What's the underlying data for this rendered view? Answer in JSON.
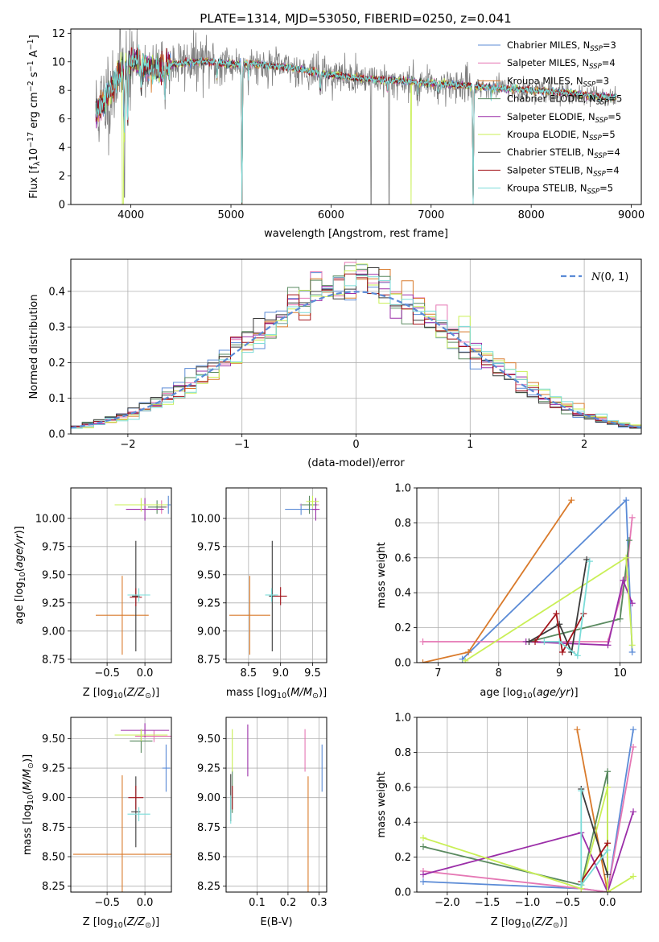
{
  "colors": [
    "#5b8bd6",
    "#e577b4",
    "#d97a2b",
    "#5a8a60",
    "#9b2ea8",
    "#c9ef56",
    "#3a3a3a",
    "#a3131a",
    "#7adcd8"
  ],
  "spectrum_color": "#808080",
  "chart_data": [
    {
      "id": "spectrum",
      "type": "line",
      "title": "PLATE=1314, MJD=53050, FIBERID=0250, z=0.041",
      "xlabel": "wavelength [Angstrom, rest frame]",
      "ylabel": "Flux [f_λ 10^-17 erg cm^-2 s^-1 A^-1]",
      "xlim": [
        3400,
        9100
      ],
      "ylim": [
        0,
        12.3
      ],
      "xticks": [
        4000,
        5000,
        6000,
        7000,
        8000,
        9000
      ],
      "yticks": [
        0,
        2,
        4,
        6,
        8,
        10,
        12
      ],
      "grid": false,
      "legend_position": "top-right",
      "legend": [
        {
          "pre": "Chabrier MILES, N",
          "sub": "SSP",
          "post": "=3"
        },
        {
          "pre": "Salpeter MILES, N",
          "sub": "SSP",
          "post": "=4"
        },
        {
          "pre": "Kroupa MILES, N",
          "sub": "SSP",
          "post": "=3"
        },
        {
          "pre": "Chabrier ELODIE, N",
          "sub": "SSP",
          "post": "=5"
        },
        {
          "pre": "Salpeter ELODIE, N",
          "sub": "SSP",
          "post": "=5"
        },
        {
          "pre": "Kroupa ELODIE, N",
          "sub": "SSP",
          "post": "=5"
        },
        {
          "pre": "Chabrier STELIB, N",
          "sub": "SSP",
          "post": "=4"
        },
        {
          "pre": "Salpeter STELIB, N",
          "sub": "SSP",
          "post": "=4"
        },
        {
          "pre": "Kroupa STELIB, N",
          "sub": "SSP",
          "post": "=5"
        }
      ],
      "continuum": [
        [
          3650,
          6.5
        ],
        [
          3700,
          6.8
        ],
        [
          3800,
          8.0
        ],
        [
          3900,
          9.5
        ],
        [
          4000,
          10.0
        ],
        [
          4100,
          9.9
        ],
        [
          4200,
          9.5
        ],
        [
          4300,
          9.4
        ],
        [
          4400,
          9.8
        ],
        [
          4600,
          10.0
        ],
        [
          4800,
          10.0
        ],
        [
          5000,
          9.8
        ],
        [
          5200,
          9.9
        ],
        [
          5400,
          9.7
        ],
        [
          5600,
          9.6
        ],
        [
          5800,
          9.3
        ],
        [
          6000,
          9.1
        ],
        [
          6200,
          8.9
        ],
        [
          6400,
          8.8
        ],
        [
          6600,
          8.7
        ],
        [
          6800,
          8.6
        ],
        [
          7000,
          8.5
        ],
        [
          7200,
          8.4
        ],
        [
          7400,
          8.3
        ],
        [
          7600,
          8.2
        ],
        [
          7800,
          8.1
        ],
        [
          8000,
          8.0
        ],
        [
          8200,
          7.9
        ],
        [
          8400,
          7.8
        ],
        [
          8600,
          7.6
        ],
        [
          8800,
          7.5
        ]
      ],
      "absorption_lines": [
        [
          3934,
          5.0
        ],
        [
          3968,
          5.5
        ],
        [
          4102,
          8.2
        ],
        [
          4340,
          7.9
        ],
        [
          4861,
          8.8
        ],
        [
          5110,
          0.0
        ],
        [
          5175,
          8.9
        ],
        [
          5893,
          8.0
        ],
        [
          6563,
          7.9
        ],
        [
          6870,
          7.6
        ],
        [
          7070,
          7.9
        ],
        [
          7420,
          0.0
        ],
        [
          7600,
          7.5
        ]
      ]
    },
    {
      "id": "residuals",
      "type": "line",
      "xlabel": "(data-model)/error",
      "ylabel": "Normed distribution",
      "xlim": [
        -2.5,
        2.5
      ],
      "ylim": [
        0,
        0.49
      ],
      "xticks": [
        -2,
        -1,
        0,
        1,
        2
      ],
      "yticks": [
        0.0,
        0.1,
        0.2,
        0.3,
        0.4
      ],
      "grid": true,
      "legend_position": "top-right",
      "legend_label": "N(0,1)",
      "reference_color": "#5b8bd6",
      "bin_width": 0.1
    },
    {
      "id": "z-age",
      "type": "scatter",
      "xlabel": "Z [log10(Z/Z⊙)]",
      "ylabel": "age  [log10(age/yr)]",
      "xlim": [
        -0.98,
        0.35
      ],
      "ylim": [
        8.72,
        10.27
      ],
      "xticks": [
        -0.5,
        0.0
      ],
      "yticks": [
        8.75,
        9.0,
        9.25,
        9.5,
        9.75,
        10.0
      ],
      "grid": true,
      "points": [
        {
          "c": 0,
          "x": 0.31,
          "xe": 0.03,
          "y": 10.12,
          "ye": 0.08
        },
        {
          "c": 1,
          "x": 0.22,
          "xe": 0.08,
          "y": 10.1,
          "ye": 0.06
        },
        {
          "c": 2,
          "x": -0.3,
          "xe": 0.35,
          "y": 9.14,
          "ye": 0.35
        },
        {
          "c": 3,
          "x": 0.16,
          "xe": 0.12,
          "y": 10.1,
          "ye": 0.06
        },
        {
          "c": 4,
          "x": 0.0,
          "xe": 0.25,
          "y": 10.08,
          "ye": 0.1
        },
        {
          "c": 5,
          "x": -0.05,
          "xe": 0.35,
          "y": 10.12,
          "ye": 0.06
        },
        {
          "c": 6,
          "x": -0.12,
          "xe": 0.05,
          "y": 9.31,
          "ye": 0.49
        },
        {
          "c": 7,
          "x": -0.12,
          "xe": 0.08,
          "y": 9.3,
          "ye": 0.08
        },
        {
          "c": 8,
          "x": -0.08,
          "xe": 0.15,
          "y": 9.32,
          "ye": 0.06
        }
      ]
    },
    {
      "id": "mass-age",
      "type": "scatter",
      "xlabel": "mass [log10(M/M⊙)]",
      "ylabel": "",
      "xlim": [
        8.15,
        9.72
      ],
      "ylim": [
        8.72,
        10.27
      ],
      "xticks": [
        8.5,
        9.0,
        9.5
      ],
      "yticks": [
        8.75,
        9.0,
        9.25,
        9.5,
        9.75,
        10.0
      ],
      "grid": true,
      "points": [
        {
          "c": 0,
          "x": 9.32,
          "xe": 0.25,
          "y": 10.08,
          "ye": 0.05
        },
        {
          "c": 1,
          "x": 9.45,
          "xe": 0.15,
          "y": 10.12,
          "ye": 0.06
        },
        {
          "c": 2,
          "x": 8.52,
          "xe": 0.32,
          "y": 9.14,
          "ye": 0.35
        },
        {
          "c": 3,
          "x": 9.45,
          "xe": 0.12,
          "y": 10.12,
          "ye": 0.08
        },
        {
          "c": 4,
          "x": 9.55,
          "xe": 0.06,
          "y": 10.08,
          "ye": 0.1
        },
        {
          "c": 5,
          "x": 9.5,
          "xe": 0.1,
          "y": 10.15,
          "ye": 0.05
        },
        {
          "c": 6,
          "x": 8.87,
          "xe": 0.05,
          "y": 9.31,
          "ye": 0.49
        },
        {
          "c": 7,
          "x": 9.0,
          "xe": 0.1,
          "y": 9.31,
          "ye": 0.08
        },
        {
          "c": 8,
          "x": 8.86,
          "xe": 0.1,
          "y": 9.32,
          "ye": 0.06
        }
      ]
    },
    {
      "id": "age-weight",
      "type": "line",
      "xlabel": "age  [log10(age/yr)]",
      "ylabel": "mass weight",
      "xlim": [
        6.65,
        10.35
      ],
      "ylim": [
        0,
        1.0
      ],
      "xticks": [
        7,
        8,
        9,
        10
      ],
      "yticks": [
        0.0,
        0.2,
        0.4,
        0.6,
        0.8,
        1.0
      ],
      "grid": true,
      "series": [
        {
          "c": 0,
          "points": [
            [
              7.4,
              0.02
            ],
            [
              10.1,
              0.93
            ],
            [
              10.2,
              0.06
            ]
          ]
        },
        {
          "c": 1,
          "points": [
            [
              6.75,
              0.12
            ],
            [
              9.8,
              0.12
            ],
            [
              10.1,
              0.49
            ],
            [
              10.2,
              0.83
            ]
          ]
        },
        {
          "c": 2,
          "points": [
            [
              6.75,
              0.0
            ],
            [
              7.5,
              0.06
            ],
            [
              9.2,
              0.93
            ]
          ]
        },
        {
          "c": 3,
          "points": [
            [
              8.5,
              0.12
            ],
            [
              10.0,
              0.25
            ],
            [
              10.15,
              0.7
            ]
          ]
        },
        {
          "c": 4,
          "points": [
            [
              8.45,
              0.12
            ],
            [
              9.8,
              0.1
            ],
            [
              10.05,
              0.47
            ],
            [
              10.2,
              0.34
            ]
          ]
        },
        {
          "c": 5,
          "points": [
            [
              7.45,
              0.01
            ],
            [
              10.1,
              0.6
            ],
            [
              10.2,
              0.1
            ]
          ]
        },
        {
          "c": 6,
          "points": [
            [
              8.5,
              0.12
            ],
            [
              9.0,
              0.22
            ],
            [
              9.2,
              0.06
            ],
            [
              9.45,
              0.59
            ]
          ]
        },
        {
          "c": 7,
          "points": [
            [
              8.6,
              0.12
            ],
            [
              8.95,
              0.28
            ],
            [
              9.05,
              0.06
            ],
            [
              9.4,
              0.28
            ]
          ]
        },
        {
          "c": 8,
          "points": [
            [
              8.75,
              0.12
            ],
            [
              9.0,
              0.12
            ],
            [
              9.3,
              0.04
            ],
            [
              9.5,
              0.58
            ]
          ]
        }
      ]
    },
    {
      "id": "z-mass",
      "type": "scatter",
      "xlabel": "Z [log10(Z/Z⊙)]",
      "ylabel": "mass [log10(M/M⊙)]",
      "xlim": [
        -0.98,
        0.35
      ],
      "ylim": [
        8.2,
        9.68
      ],
      "xticks": [
        -0.5,
        0.0
      ],
      "yticks": [
        8.25,
        8.5,
        8.75,
        9.0,
        9.25,
        9.5
      ],
      "grid": true,
      "points": [
        {
          "c": 0,
          "x": 0.28,
          "xe": 0.05,
          "y": 9.25,
          "ye": 0.2
        },
        {
          "c": 1,
          "x": 0.12,
          "xe": 0.25,
          "y": 9.52,
          "ye": 0.05
        },
        {
          "c": 2,
          "x": -0.3,
          "xe": 0.65,
          "y": 8.52,
          "ye": 0.67
        },
        {
          "c": 3,
          "x": -0.05,
          "xe": 0.15,
          "y": 9.48,
          "ye": 0.1
        },
        {
          "c": 4,
          "x": 0.0,
          "xe": 0.32,
          "y": 9.57,
          "ye": 0.06
        },
        {
          "c": 5,
          "x": -0.05,
          "xe": 0.35,
          "y": 9.53,
          "ye": 0.05
        },
        {
          "c": 6,
          "x": -0.12,
          "xe": 0.06,
          "y": 8.88,
          "ye": 0.3
        },
        {
          "c": 7,
          "x": -0.12,
          "xe": 0.1,
          "y": 9.0,
          "ye": 0.1
        },
        {
          "c": 8,
          "x": -0.08,
          "xe": 0.15,
          "y": 8.86,
          "ye": 0.06
        }
      ]
    },
    {
      "id": "ebv-mass",
      "type": "scatter",
      "xlabel": "E(B-V)",
      "ylabel": "",
      "xlim": [
        0.0,
        0.325
      ],
      "ylim": [
        8.2,
        9.68
      ],
      "xticks": [
        0.1,
        0.2,
        0.3
      ],
      "yticks": [
        8.25,
        8.5,
        8.75,
        9.0,
        9.25,
        9.5
      ],
      "grid": true,
      "points": [
        {
          "c": 0,
          "x": 0.31,
          "xe": 0,
          "y": 9.25,
          "ye": 0.2
        },
        {
          "c": 1,
          "x": 0.255,
          "xe": 0,
          "y": 9.4,
          "ye": 0.18
        },
        {
          "c": 2,
          "x": 0.265,
          "xe": 0,
          "y": 8.5,
          "ye": 0.68
        },
        {
          "c": 3,
          "x": 0.02,
          "xe": 0,
          "y": 9.05,
          "ye": 0.18
        },
        {
          "c": 4,
          "x": 0.07,
          "xe": 0,
          "y": 9.4,
          "ye": 0.22
        },
        {
          "c": 5,
          "x": 0.02,
          "xe": 0,
          "y": 9.4,
          "ye": 0.18
        },
        {
          "c": 6,
          "x": 0.015,
          "xe": 0,
          "y": 9.0,
          "ye": 0.2
        },
        {
          "c": 7,
          "x": 0.02,
          "xe": 0,
          "y": 9.0,
          "ye": 0.1
        },
        {
          "c": 8,
          "x": 0.015,
          "xe": 0,
          "y": 8.9,
          "ye": 0.12
        }
      ]
    },
    {
      "id": "z-weight",
      "type": "line",
      "xlabel": "Z [log10(Z/Z⊙)]",
      "ylabel": "mass weight",
      "xlim": [
        -2.38,
        0.42
      ],
      "ylim": [
        0,
        1.0
      ],
      "xticks": [
        -2.0,
        -1.5,
        -1.0,
        -0.5,
        0.0
      ],
      "yticks": [
        0.0,
        0.2,
        0.4,
        0.6,
        0.8,
        1.0
      ],
      "grid": true,
      "series": [
        {
          "c": 0,
          "points": [
            [
              -2.3,
              0.06
            ],
            [
              -0.33,
              0.02
            ],
            [
              0.0,
              0.0
            ],
            [
              0.32,
              0.93
            ]
          ]
        },
        {
          "c": 1,
          "points": [
            [
              -2.3,
              0.12
            ],
            [
              -0.33,
              0.02
            ],
            [
              0.0,
              0.0
            ],
            [
              0.32,
              0.83
            ]
          ]
        },
        {
          "c": 2,
          "points": [
            [
              -0.38,
              0.93
            ],
            [
              0.0,
              0.0
            ]
          ]
        },
        {
          "c": 3,
          "points": [
            [
              -2.3,
              0.26
            ],
            [
              -0.33,
              0.04
            ],
            [
              0.0,
              0.69
            ],
            [
              0.0,
              0.0
            ]
          ]
        },
        {
          "c": 4,
          "points": [
            [
              -2.3,
              0.1
            ],
            [
              -0.33,
              0.34
            ],
            [
              0.0,
              0.0
            ],
            [
              0.32,
              0.46
            ]
          ]
        },
        {
          "c": 5,
          "points": [
            [
              -2.3,
              0.31
            ],
            [
              -0.33,
              0.02
            ],
            [
              0.0,
              0.6
            ],
            [
              0.0,
              0.0
            ],
            [
              0.32,
              0.09
            ]
          ]
        },
        {
          "c": 6,
          "points": [
            [
              -0.33,
              0.59
            ],
            [
              0.0,
              0.1
            ]
          ]
        },
        {
          "c": 7,
          "points": [
            [
              -0.33,
              0.06
            ],
            [
              0.0,
              0.28
            ]
          ]
        },
        {
          "c": 8,
          "points": [
            [
              -0.33,
              0.58
            ],
            [
              -0.33,
              0.04
            ],
            [
              0.0,
              0.24
            ]
          ]
        }
      ]
    }
  ]
}
